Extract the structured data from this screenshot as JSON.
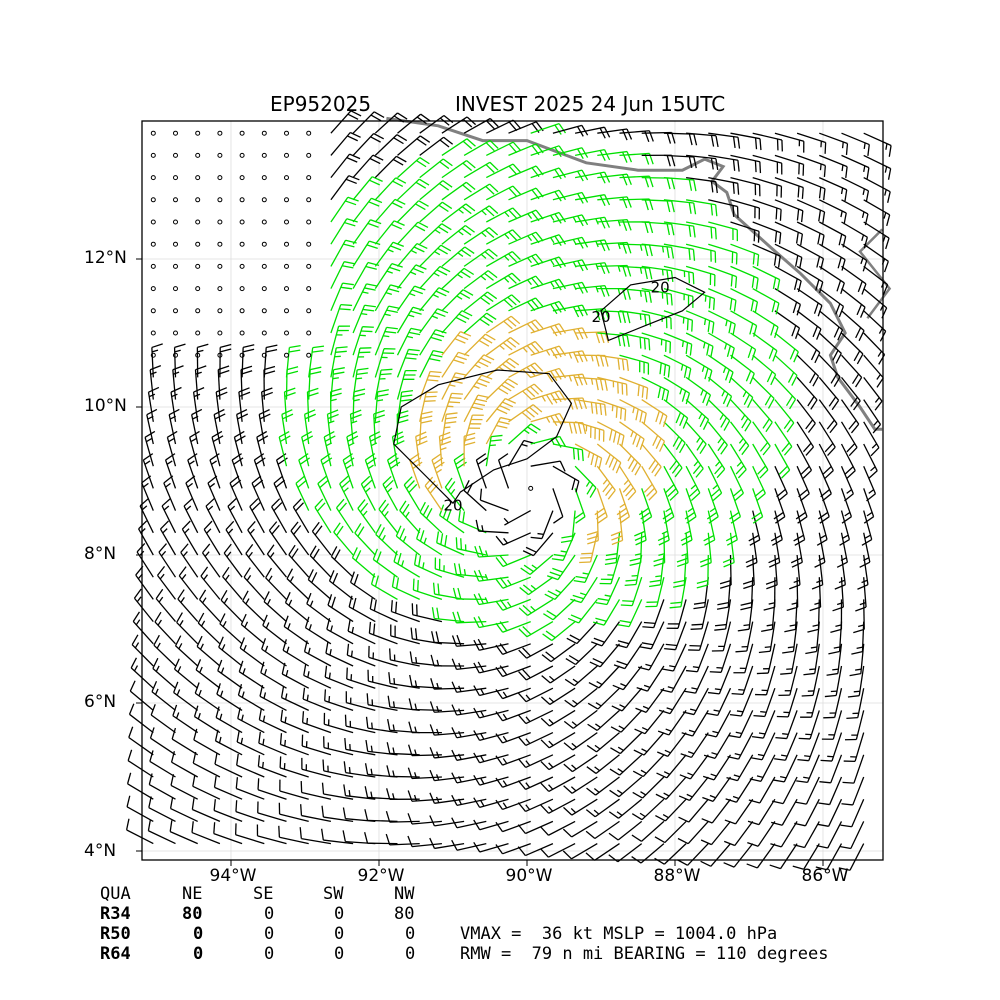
{
  "title": {
    "left": "EP952025",
    "right": "INVEST 2025 24 Jun 15UTC"
  },
  "axes": {
    "lat_ticks": [
      "12°N",
      "10°N",
      "8°N",
      "6°N",
      "4°N"
    ],
    "lon_ticks": [
      "94°W",
      "92°W",
      "90°W",
      "88°W",
      "86°W"
    ],
    "lat_range": [
      3.9,
      13.8
    ],
    "lon_range": [
      -95.2,
      -85.2
    ],
    "grid": true
  },
  "storm_center": {
    "lat": 8.9,
    "lon": -90.0
  },
  "contours": {
    "label": "20",
    "level_kt": 20
  },
  "colors": {
    "coast": "#808080",
    "barb_34": "#00e000",
    "barb_50": "#e0b030",
    "barb": "#000000"
  },
  "wind_radii": {
    "header": [
      "QUA",
      "NE",
      "SE",
      "SW",
      "NW"
    ],
    "rows": [
      {
        "label": "R34",
        "values": [
          "80",
          "0",
          "0",
          "80"
        ]
      },
      {
        "label": "R50",
        "values": [
          "0",
          "0",
          "0",
          "0"
        ]
      },
      {
        "label": "R64",
        "values": [
          "0",
          "0",
          "0",
          "0"
        ]
      }
    ]
  },
  "stats": {
    "line1": "VMAX =  36 kt MSLP = 1004.0 hPa",
    "line2": "RMW =  79 n mi BEARING = 110 degrees"
  }
}
